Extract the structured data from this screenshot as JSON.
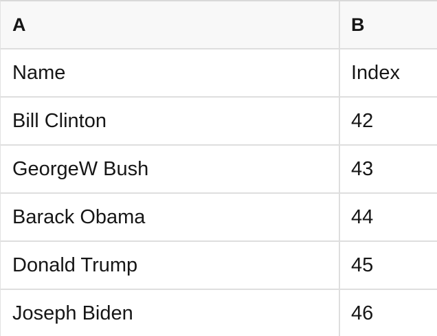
{
  "table": {
    "column_headers": [
      "A",
      "B"
    ],
    "rows": [
      {
        "a": "Name",
        "b": "Index"
      },
      {
        "a": "Bill Clinton",
        "b": "42"
      },
      {
        "a": "GeorgeW Bush",
        "b": "43"
      },
      {
        "a": "Barack Obama",
        "b": "44"
      },
      {
        "a": "Donald Trump",
        "b": "45"
      },
      {
        "a": "Joseph Biden",
        "b": "46"
      }
    ],
    "colors": {
      "header_background": "#f8f8f8",
      "border": "#dedede",
      "text": "#161616",
      "row_background": "#ffffff"
    }
  }
}
